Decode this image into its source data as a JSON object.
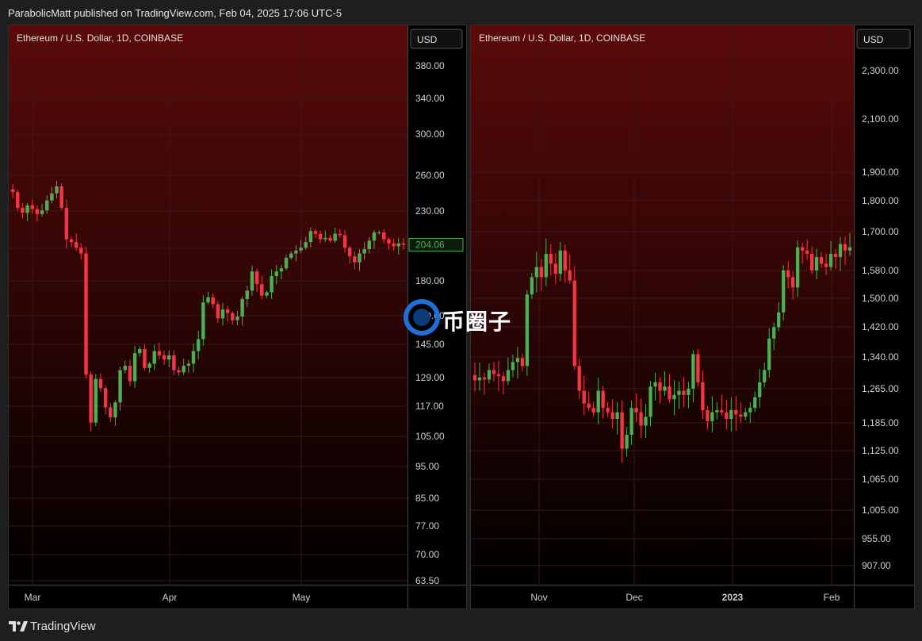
{
  "header": {
    "published": "ParabolicMatt published on TradingView.com, Feb 04, 2025 17:06 UTC-5"
  },
  "footer": {
    "brand": "TradingView"
  },
  "watermark": {
    "text": "币圈子"
  },
  "colors": {
    "up": "#4caf50",
    "down": "#f23645",
    "bg_top": "#5a0a0a",
    "bg_bottom": "#000000",
    "grid": "#3a1818"
  },
  "chart_data": [
    {
      "type": "candlestick",
      "title": "Ethereum / U.S. Dollar, 1D, COINBASE",
      "currency": "USD",
      "scale": "log",
      "ylim": [
        61,
        470
      ],
      "y_ticks": [
        "380.00",
        "340.00",
        "300.00",
        "260.00",
        "230.00",
        "206.00",
        "180.00",
        "160.00",
        "145.00",
        "129.00",
        "117.00",
        "105.00",
        "95.00",
        "85.00",
        "77.00",
        "70.00",
        "63.50"
      ],
      "x_ticks": [
        "Mar",
        "Apr",
        "May"
      ],
      "last_price": "204.06",
      "x_range": [
        "2020-02-22",
        "2020-05-30"
      ],
      "grid": true,
      "candles_closes": [
        245,
        232,
        228,
        234,
        231,
        227,
        230,
        238,
        244,
        250,
        232,
        208,
        206,
        202,
        198,
        130,
        110,
        128,
        124,
        116,
        112,
        118,
        132,
        134,
        127,
        140,
        142,
        133,
        135,
        141,
        139,
        137,
        139,
        132,
        131,
        134,
        135,
        141,
        147,
        167,
        170,
        166,
        158,
        163,
        161,
        157,
        159,
        169,
        174,
        186,
        178,
        171,
        173,
        183,
        186,
        188,
        195,
        198,
        200,
        202,
        206,
        214,
        212,
        208,
        209,
        207,
        212,
        211,
        202,
        196,
        192,
        198,
        201,
        207,
        213,
        213,
        208,
        205,
        203,
        205,
        204.06
      ],
      "candles_changes_note": "closes read approximately from chart"
    },
    {
      "type": "candlestick",
      "title": "Ethereum / U.S. Dollar, 1D, COINBASE",
      "currency": "USD",
      "scale": "log",
      "ylim": [
        880,
        2450
      ],
      "y_ticks": [
        "2,300.00",
        "2,100.00",
        "1,900.00",
        "1,800.00",
        "1,700.00",
        "1,580.00",
        "1,500.00",
        "1,420.00",
        "1,340.00",
        "1,265.00",
        "1,185.00",
        "1,125.00",
        "1,065.00",
        "1,005.00",
        "955.00",
        "907.00"
      ],
      "x_ticks": [
        "Nov",
        "Dec",
        "2023",
        "Feb"
      ],
      "x_range": [
        "2022-10-10",
        "2023-02-25"
      ],
      "grid": true,
      "candles_closes": [
        1285,
        1292,
        1287,
        1310,
        1300,
        1295,
        1283,
        1310,
        1330,
        1340,
        1320,
        1510,
        1560,
        1590,
        1560,
        1630,
        1600,
        1570,
        1640,
        1580,
        1550,
        1320,
        1260,
        1230,
        1220,
        1210,
        1260,
        1220,
        1210,
        1195,
        1210,
        1130,
        1160,
        1220,
        1210,
        1180,
        1200,
        1270,
        1280,
        1260,
        1270,
        1240,
        1250,
        1260,
        1250,
        1265,
        1350,
        1280,
        1215,
        1190,
        1210,
        1215,
        1210,
        1195,
        1215,
        1205,
        1200,
        1210,
        1220,
        1245,
        1280,
        1310,
        1390,
        1420,
        1460,
        1580,
        1560,
        1530,
        1650,
        1640,
        1630,
        1580,
        1620,
        1600,
        1590,
        1630,
        1620,
        1660,
        1640,
        1650
      ]
    }
  ]
}
